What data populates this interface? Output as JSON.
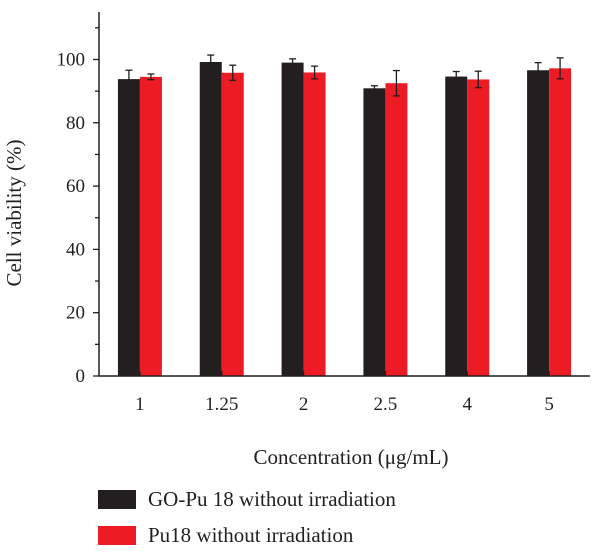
{
  "chart_data": {
    "type": "bar",
    "categories": [
      "1",
      "1.25",
      "2",
      "2.5",
      "4",
      "5"
    ],
    "series": [
      {
        "name": "GO-Pu 18 without irradiation",
        "values": [
          93.8,
          99.2,
          99.0,
          90.9,
          94.6,
          96.6
        ],
        "errors": [
          2.8,
          2.2,
          1.2,
          0.8,
          1.6,
          2.4
        ],
        "color": "#231f20"
      },
      {
        "name": "Pu18 without irradiation",
        "values": [
          94.5,
          95.8,
          95.9,
          92.5,
          93.7,
          97.2
        ],
        "errors": [
          0.9,
          2.4,
          2.0,
          4.0,
          2.6,
          3.3
        ],
        "color": "#ed1c24"
      }
    ],
    "ylim": [
      0,
      115
    ],
    "yticks": [
      0,
      20,
      40,
      60,
      80,
      100
    ],
    "xlabel": "Concentration (μg/mL)",
    "ylabel": "Cell viability (%)",
    "grid": false,
    "legend_position": "bottom"
  }
}
